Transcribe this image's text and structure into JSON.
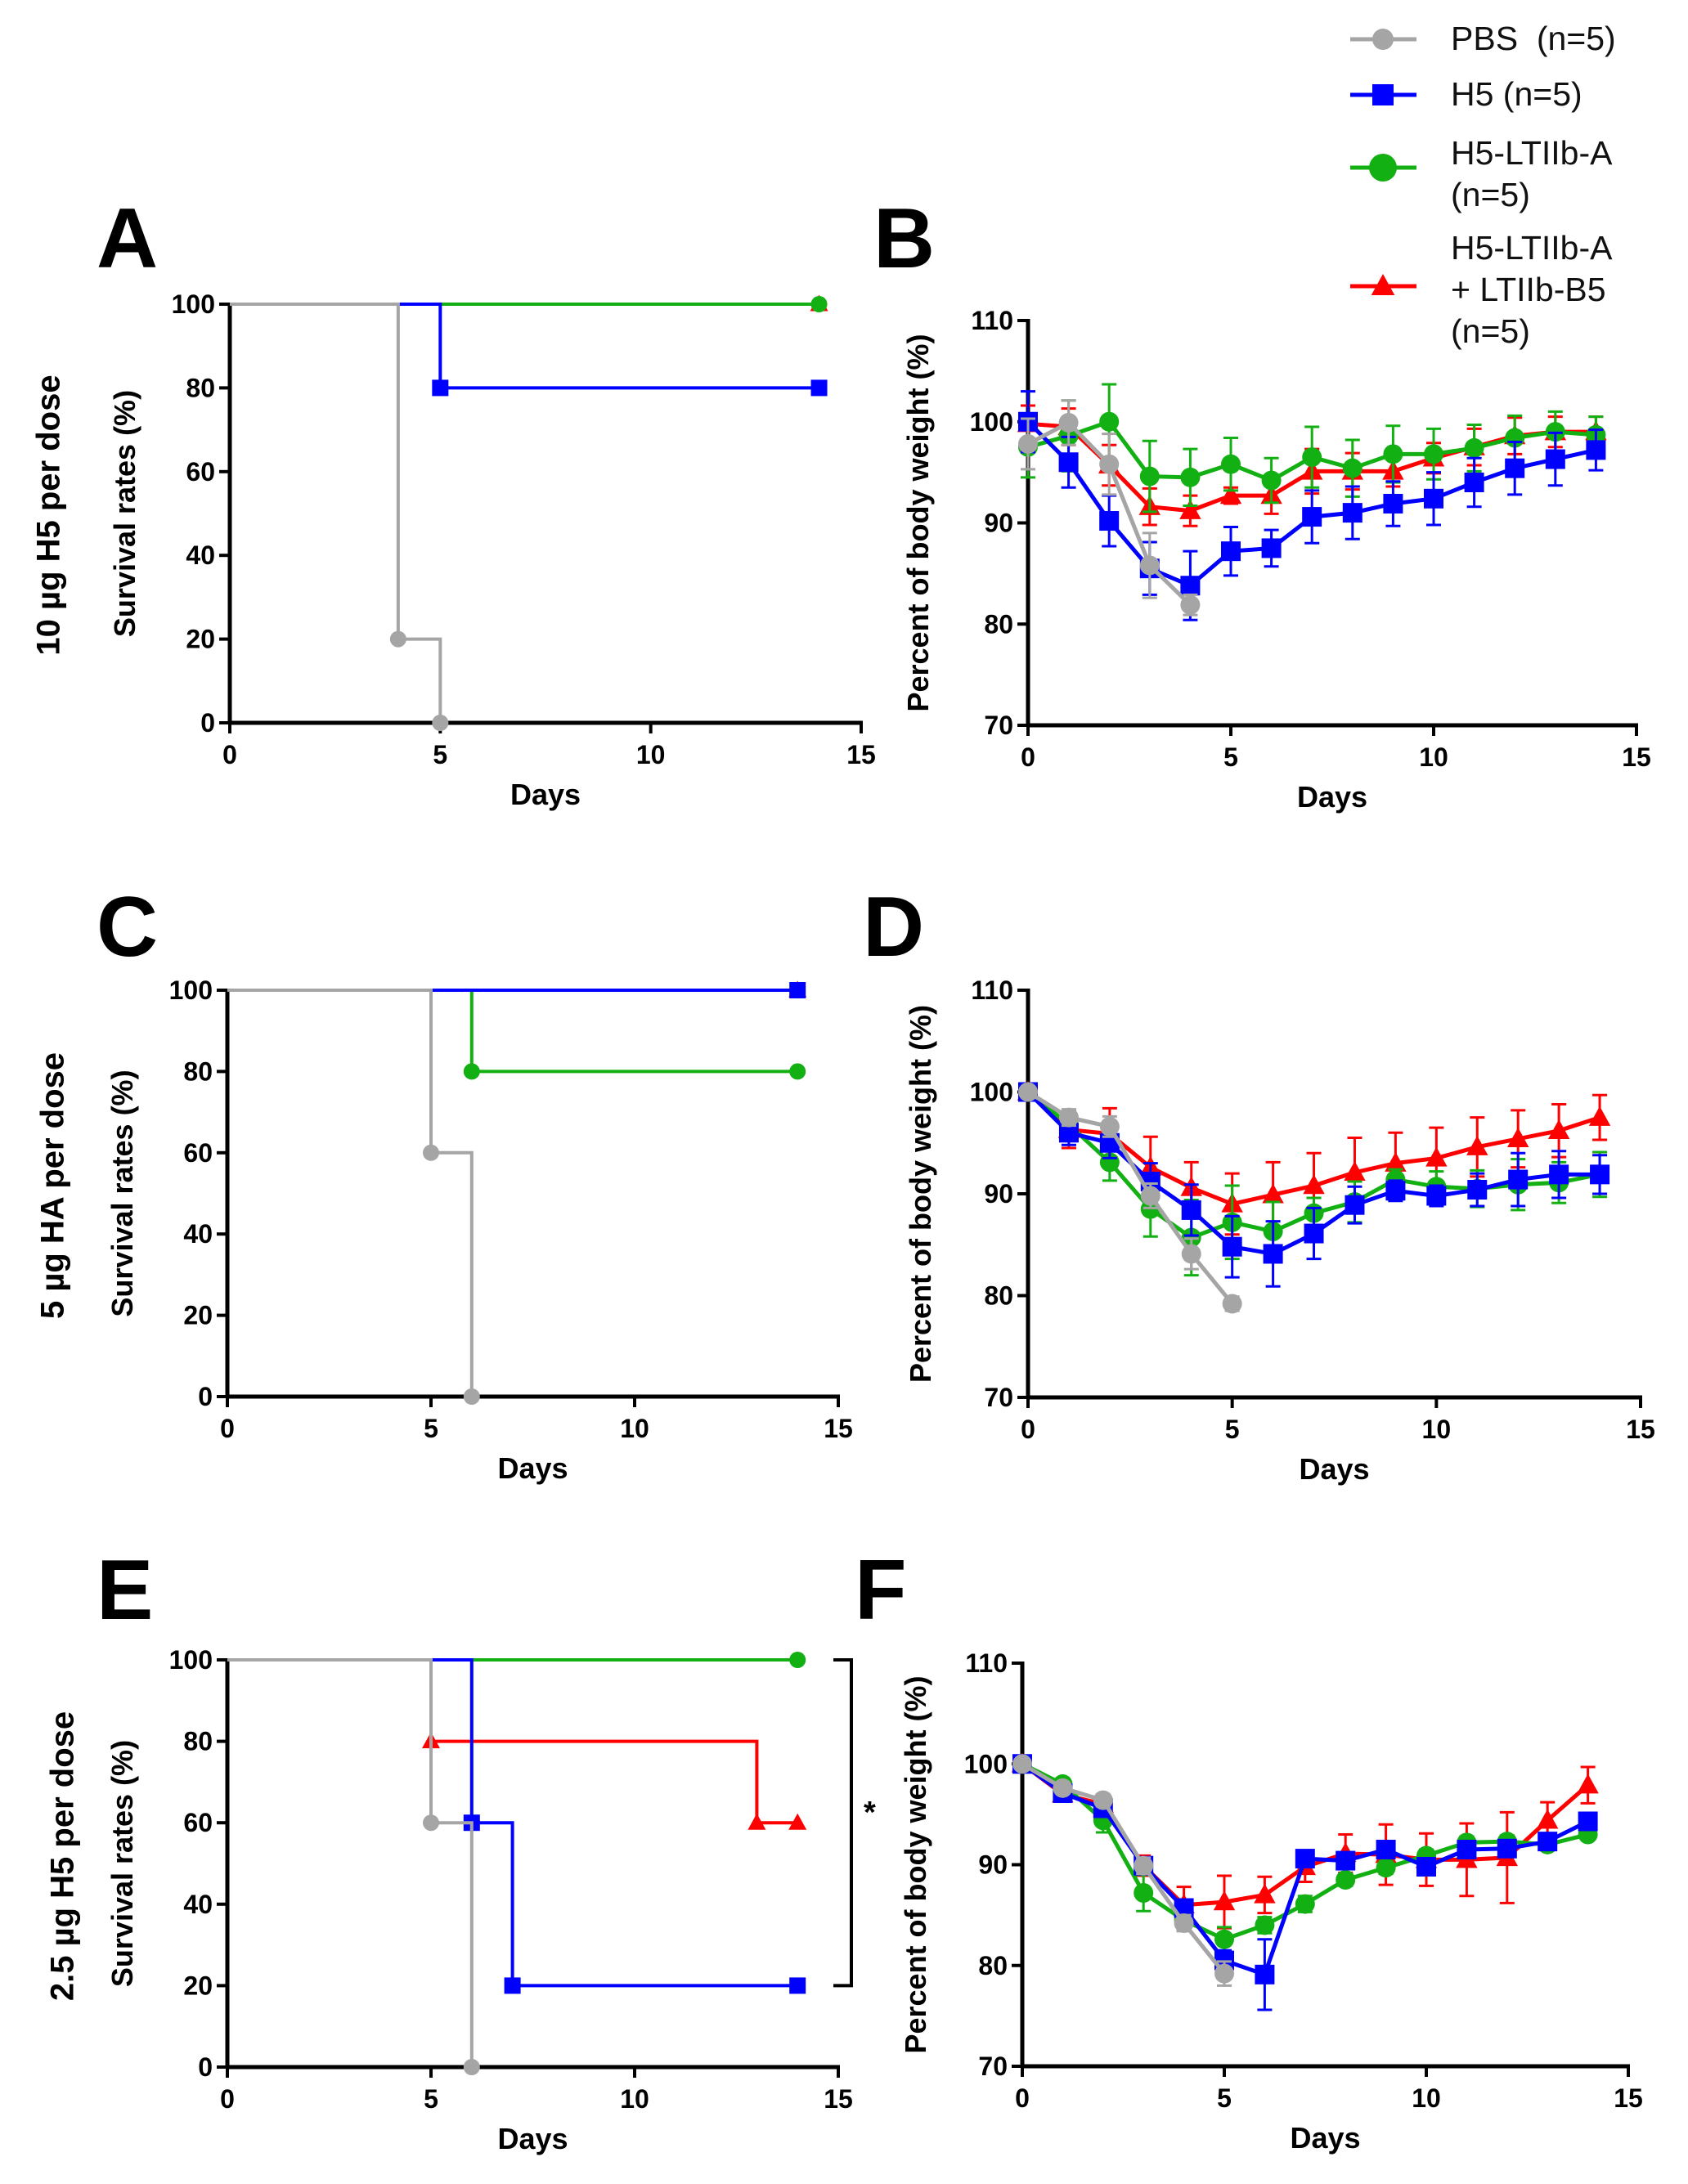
{
  "legend": {
    "items": [
      {
        "label": "PBS  (n=5)",
        "color": "#a5a5a5",
        "marker": "circle"
      },
      {
        "label": "H5 (n=5)",
        "color": "#0000ff",
        "marker": "square"
      },
      {
        "label": "H5-LTIIb-A\n(n=5)",
        "color": "#12b012",
        "marker": "circle"
      },
      {
        "label": "H5-LTIIb-A\n+ LTIIb-B5\n(n=5)",
        "color": "#ff0000",
        "marker": "triangle"
      }
    ]
  },
  "rows": [
    {
      "label": "10 µg  H5 per dose"
    },
    {
      "label": "5 µg HA per dose"
    },
    {
      "label": "2.5 µg H5 per dose"
    }
  ],
  "significance": {
    "label": "*"
  },
  "chart_data": [
    {
      "panel": "A",
      "type": "line",
      "subtype": "survival-step",
      "xlabel": "Days",
      "ylabel": "Survival rates (%)",
      "xlim": [
        0,
        15
      ],
      "ylim": [
        0,
        100
      ],
      "xticks": [
        0,
        5,
        10,
        15
      ],
      "yticks": [
        0,
        20,
        40,
        60,
        80,
        100
      ],
      "grid": false,
      "series": [
        {
          "name": "H5-LTIIb-A + LTIIb-B5 (n=5)",
          "color": "#ff0000",
          "marker": "triangle",
          "x": [
            0,
            14
          ],
          "y": [
            100,
            100
          ]
        },
        {
          "name": "H5-LTIIb-A (n=5)",
          "color": "#12b012",
          "marker": "circle",
          "x": [
            0,
            14
          ],
          "y": [
            100,
            100
          ]
        },
        {
          "name": "H5 (n=5)",
          "color": "#0000ff",
          "marker": "square",
          "x": [
            0,
            5,
            14
          ],
          "y": [
            100,
            80,
            80
          ]
        },
        {
          "name": "PBS (n=5)",
          "color": "#a5a5a5",
          "marker": "circle",
          "x": [
            0,
            4,
            5
          ],
          "y": [
            100,
            20,
            0
          ]
        }
      ]
    },
    {
      "panel": "B",
      "type": "line",
      "xlabel": "Days",
      "ylabel": "Percent of body weight (%)",
      "xlim": [
        0,
        15
      ],
      "ylim": [
        70,
        110
      ],
      "xticks": [
        0,
        5,
        10,
        15
      ],
      "yticks": [
        70,
        80,
        90,
        100,
        110
      ],
      "grid": false,
      "series": [
        {
          "name": "H5-LTIIb-A + LTIIb-B5 (n=5)",
          "color": "#ff0000",
          "marker": "triangle",
          "x": [
            0,
            1,
            2,
            3,
            4,
            5,
            6,
            7,
            8,
            9,
            10,
            11,
            12,
            13,
            14
          ],
          "y": [
            99.8,
            99.5,
            95.7,
            91.6,
            91.2,
            92.7,
            92.7,
            95.1,
            95.1,
            95.1,
            96.4,
            97.5,
            98.6,
            99.0,
            99.0
          ],
          "err": [
            1.8,
            1.8,
            2.0,
            1.8,
            1.5,
            0.8,
            1.8,
            2.2,
            1.8,
            1.5,
            1.5,
            1.8,
            1.8,
            1.5,
            1.5
          ]
        },
        {
          "name": "H5-LTIIb-A (n=5)",
          "color": "#12b012",
          "marker": "circle",
          "x": [
            0,
            1,
            2,
            3,
            4,
            5,
            6,
            7,
            8,
            9,
            10,
            11,
            12,
            13,
            14
          ],
          "y": [
            97.5,
            98.6,
            100.0,
            94.6,
            94.5,
            95.8,
            94.2,
            96.5,
            95.4,
            96.8,
            96.8,
            97.4,
            98.4,
            99.0,
            98.7
          ],
          "err": [
            3.0,
            3.5,
            3.7,
            3.5,
            2.8,
            2.6,
            2.2,
            3.0,
            2.8,
            2.8,
            2.5,
            2.3,
            2.2,
            2.0,
            1.8
          ]
        },
        {
          "name": "H5 (n=5)",
          "color": "#0000ff",
          "marker": "square",
          "x": [
            0,
            1,
            2,
            3,
            4,
            5,
            6,
            7,
            8,
            9,
            10,
            11,
            12,
            13,
            14
          ],
          "y": [
            100.0,
            96.0,
            90.2,
            85.5,
            83.8,
            87.2,
            87.5,
            90.6,
            91.0,
            91.9,
            92.4,
            94.0,
            95.4,
            96.3,
            97.2
          ],
          "err": [
            3.0,
            2.5,
            2.5,
            2.6,
            3.4,
            2.4,
            1.8,
            2.6,
            2.6,
            2.2,
            2.6,
            2.4,
            2.6,
            2.6,
            2.0
          ]
        },
        {
          "name": "PBS (n=5)",
          "color": "#a5a5a5",
          "marker": "circle",
          "x": [
            0,
            1,
            2,
            3,
            4
          ],
          "y": [
            97.8,
            99.9,
            95.8,
            85.8,
            81.9
          ],
          "err": [
            2.5,
            2.2,
            3.0,
            3.2,
            1.0
          ]
        }
      ]
    },
    {
      "panel": "C",
      "type": "line",
      "subtype": "survival-step",
      "xlabel": "Days",
      "ylabel": "Survival rates (%)",
      "xlim": [
        0,
        15
      ],
      "ylim": [
        0,
        100
      ],
      "xticks": [
        0,
        5,
        10,
        15
      ],
      "yticks": [
        0,
        20,
        40,
        60,
        80,
        100
      ],
      "grid": false,
      "series": [
        {
          "name": "H5-LTIIb-A + LTIIb-B5 (n=5)",
          "color": "#ff0000",
          "marker": "triangle",
          "x": [
            0,
            14
          ],
          "y": [
            100,
            100
          ]
        },
        {
          "name": "H5-LTIIb-A (n=5)",
          "color": "#12b012",
          "marker": "circle",
          "x": [
            0,
            6,
            14
          ],
          "y": [
            100,
            80,
            80
          ]
        },
        {
          "name": "H5 (n=5)",
          "color": "#0000ff",
          "marker": "square",
          "x": [
            0,
            14
          ],
          "y": [
            100,
            100
          ]
        },
        {
          "name": "PBS (n=5)",
          "color": "#a5a5a5",
          "marker": "circle",
          "x": [
            0,
            5,
            6
          ],
          "y": [
            100,
            60,
            0
          ]
        }
      ]
    },
    {
      "panel": "D",
      "type": "line",
      "xlabel": "Days",
      "ylabel": "Percent of body weight (%)",
      "xlim": [
        0,
        15
      ],
      "ylim": [
        70,
        110
      ],
      "xticks": [
        0,
        5,
        10,
        15
      ],
      "yticks": [
        70,
        80,
        90,
        100,
        110
      ],
      "grid": false,
      "series": [
        {
          "name": "H5-LTIIb-A + LTIIb-B5 (n=5)",
          "color": "#ff0000",
          "marker": "triangle",
          "x": [
            0,
            1,
            2,
            3,
            4,
            5,
            6,
            7,
            8,
            9,
            10,
            11,
            12,
            13,
            14
          ],
          "y": [
            100.0,
            96.3,
            95.9,
            92.6,
            90.6,
            89.0,
            89.9,
            90.8,
            92.1,
            93.0,
            93.5,
            94.6,
            95.4,
            96.2,
            97.5
          ],
          "err": [
            0.3,
            1.8,
            2.5,
            3.0,
            2.5,
            3.0,
            3.2,
            3.2,
            3.4,
            3.0,
            3.0,
            2.9,
            2.8,
            2.6,
            2.2
          ]
        },
        {
          "name": "H5-LTIIb-A (n=5)",
          "color": "#12b012",
          "marker": "circle",
          "x": [
            0,
            1,
            2,
            3,
            4,
            5,
            6,
            7,
            8,
            9,
            10,
            11,
            12,
            13,
            14
          ],
          "y": [
            100.0,
            96.8,
            93.1,
            88.5,
            85.7,
            87.2,
            86.3,
            88.1,
            89.2,
            91.4,
            90.7,
            90.5,
            90.9,
            91.1,
            91.9
          ],
          "err": [
            0.3,
            1.0,
            1.8,
            2.7,
            3.7,
            3.6,
            2.9,
            1.5,
            2.0,
            1.0,
            1.5,
            1.8,
            2.5,
            2.0,
            2.2
          ]
        },
        {
          "name": "H5 (n=5)",
          "color": "#0000ff",
          "marker": "square",
          "x": [
            0,
            1,
            2,
            3,
            4,
            5,
            6,
            7,
            8,
            9,
            10,
            11,
            12,
            13,
            14
          ],
          "y": [
            100.0,
            96.0,
            95.0,
            91.2,
            88.4,
            84.8,
            84.1,
            86.1,
            88.9,
            90.3,
            89.8,
            90.4,
            91.4,
            91.9,
            91.9
          ],
          "err": [
            0.3,
            1.2,
            1.5,
            1.8,
            2.5,
            3.0,
            3.2,
            2.5,
            1.8,
            1.0,
            1.0,
            1.6,
            2.6,
            2.3,
            1.9
          ]
        },
        {
          "name": "PBS (n=5)",
          "color": "#a5a5a5",
          "marker": "circle",
          "x": [
            0,
            1,
            2,
            3,
            4,
            5
          ],
          "y": [
            100.0,
            97.5,
            96.6,
            89.8,
            84.1,
            79.2
          ],
          "err": [
            0.3,
            0.8,
            1.0,
            1.2,
            1.5,
            0.7
          ]
        }
      ]
    },
    {
      "panel": "E",
      "type": "line",
      "subtype": "survival-step",
      "xlabel": "Days",
      "ylabel": "Survival rates (%)",
      "xlim": [
        0,
        15
      ],
      "ylim": [
        0,
        100
      ],
      "xticks": [
        0,
        5,
        10,
        15
      ],
      "yticks": [
        0,
        20,
        40,
        60,
        80,
        100
      ],
      "grid": false,
      "series": [
        {
          "name": "H5-LTIIb-A + LTIIb-B5 (n=5)",
          "color": "#ff0000",
          "marker": "triangle",
          "x": [
            0,
            5,
            13,
            14
          ],
          "y": [
            100,
            80,
            60,
            60
          ]
        },
        {
          "name": "H5-LTIIb-A (n=5)",
          "color": "#12b012",
          "marker": "circle",
          "x": [
            0,
            14
          ],
          "y": [
            100,
            100
          ]
        },
        {
          "name": "H5 (n=5)",
          "color": "#0000ff",
          "marker": "square",
          "x": [
            0,
            6,
            7,
            14
          ],
          "y": [
            100,
            60,
            20,
            20
          ]
        },
        {
          "name": "PBS (n=5)",
          "color": "#a5a5a5",
          "marker": "circle",
          "x": [
            0,
            5,
            6
          ],
          "y": [
            100,
            60,
            0
          ]
        }
      ],
      "annotation": {
        "text": "*",
        "between": [
          100,
          20
        ]
      }
    },
    {
      "panel": "F",
      "type": "line",
      "xlabel": "Days",
      "ylabel": "Percent of body weight (%)",
      "xlim": [
        0,
        15
      ],
      "ylim": [
        70,
        110
      ],
      "xticks": [
        0,
        5,
        10,
        15
      ],
      "yticks": [
        70,
        80,
        90,
        100,
        110
      ],
      "grid": false,
      "series": [
        {
          "name": "H5-LTIIb-A + LTIIb-B5 (n=5)",
          "color": "#ff0000",
          "marker": "triangle",
          "x": [
            0,
            1,
            2,
            3,
            4,
            5,
            6,
            7,
            8,
            9,
            10,
            11,
            12,
            13,
            14
          ],
          "y": [
            100.0,
            97.0,
            96.0,
            89.9,
            86.0,
            86.3,
            87.0,
            89.8,
            91.1,
            91.0,
            90.5,
            90.5,
            90.7,
            94.4,
            97.9
          ],
          "err": [
            0.3,
            0.5,
            0.8,
            1.0,
            1.8,
            2.6,
            1.8,
            1.5,
            1.9,
            3.0,
            2.6,
            3.6,
            4.5,
            1.8,
            1.8
          ]
        },
        {
          "name": "H5-LTIIb-A (n=5)",
          "color": "#12b012",
          "marker": "circle",
          "x": [
            0,
            1,
            2,
            3,
            4,
            5,
            6,
            7,
            8,
            9,
            10,
            11,
            12,
            13,
            14
          ],
          "y": [
            100.0,
            98.0,
            94.4,
            87.2,
            84.5,
            82.6,
            84.0,
            86.1,
            88.5,
            89.7,
            90.9,
            92.2,
            92.3,
            92.0,
            93.0
          ],
          "err": [
            0.3,
            0.5,
            1.2,
            1.8,
            1.0,
            1.2,
            0.8,
            0.8,
            0.6,
            0.6,
            0.6,
            0.6,
            0.6,
            0.5,
            0.5
          ]
        },
        {
          "name": "H5 (n=5)",
          "color": "#0000ff",
          "marker": "square",
          "x": [
            0,
            1,
            2,
            3,
            4,
            5,
            6,
            7,
            8,
            9,
            10,
            11,
            12,
            13,
            14
          ],
          "y": [
            100.0,
            97.1,
            95.6,
            89.9,
            85.7,
            80.5,
            79.1,
            90.6,
            90.4,
            91.5,
            89.8,
            91.5,
            91.6,
            92.3,
            94.3
          ],
          "err": [
            0.3,
            0.5,
            0.8,
            0.8,
            0.8,
            1.0,
            3.5,
            0.5,
            0.5,
            0.5,
            0.5,
            0.5,
            0.5,
            0.5,
            0.5
          ]
        },
        {
          "name": "PBS (n=5)",
          "color": "#a5a5a5",
          "marker": "circle",
          "x": [
            0,
            1,
            2,
            3,
            4,
            5
          ],
          "y": [
            100.0,
            97.6,
            96.4,
            89.9,
            84.2,
            79.2
          ],
          "err": [
            0.3,
            0.5,
            0.6,
            0.8,
            0.8,
            1.2
          ]
        }
      ]
    }
  ]
}
